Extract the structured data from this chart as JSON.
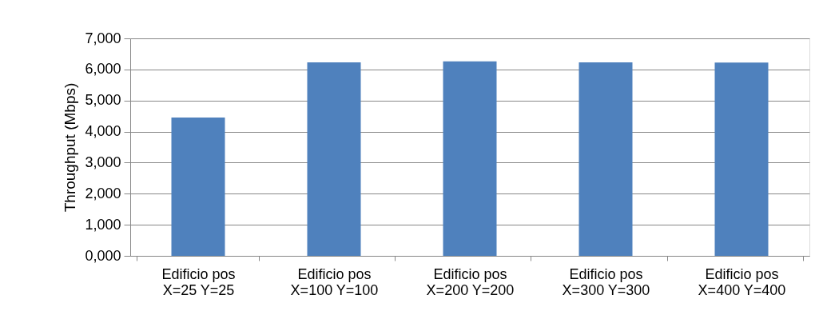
{
  "chart_data": {
    "type": "bar",
    "ylabel": "Throughput (Mbps)",
    "categories": [
      "Edificio pos\nX=25 Y=25",
      "Edificio pos\nX=100 Y=100",
      "Edificio pos\nX=200 Y=200",
      "Edificio pos\nX=300 Y=300",
      "Edificio pos\nX=400 Y=400"
    ],
    "values": [
      4450,
      6230,
      6260,
      6230,
      6220
    ],
    "color": "#4f81bd",
    "ylim": [
      0,
      7000
    ],
    "yticks": [
      {
        "value": 0,
        "label": "0,000"
      },
      {
        "value": 1000,
        "label": "1,000"
      },
      {
        "value": 2000,
        "label": "2,000"
      },
      {
        "value": 3000,
        "label": "3,000"
      },
      {
        "value": 4000,
        "label": "4,000"
      },
      {
        "value": 5000,
        "label": "5,000"
      },
      {
        "value": 6000,
        "label": "6,000"
      },
      {
        "value": 7000,
        "label": "7,000"
      }
    ],
    "grid": "y"
  }
}
